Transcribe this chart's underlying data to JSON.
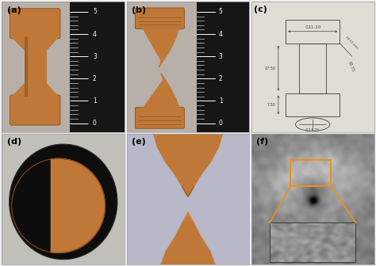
{
  "figure_bg": "#f0f0f0",
  "label_fontsize": 8,
  "labels": [
    "(a)",
    "(b)",
    "(c)",
    "(d)",
    "(e)",
    "(f)"
  ],
  "panel_a_bg": "#b8b0a8",
  "panel_b_bg": "#b8b0a8",
  "panel_c_bg": "#e0ddd5",
  "panel_d_bg": "#1a1a1a",
  "panel_e_bg": "#c0bdc8",
  "panel_f_bg": "#787878",
  "copper_color": "#c07838",
  "copper_mid": "#b06828",
  "copper_dark": "#884818",
  "ruler_bg": "#1a1a1a",
  "orange_color": "#e89020",
  "dim_color": "#404040",
  "border_color": "#999999"
}
